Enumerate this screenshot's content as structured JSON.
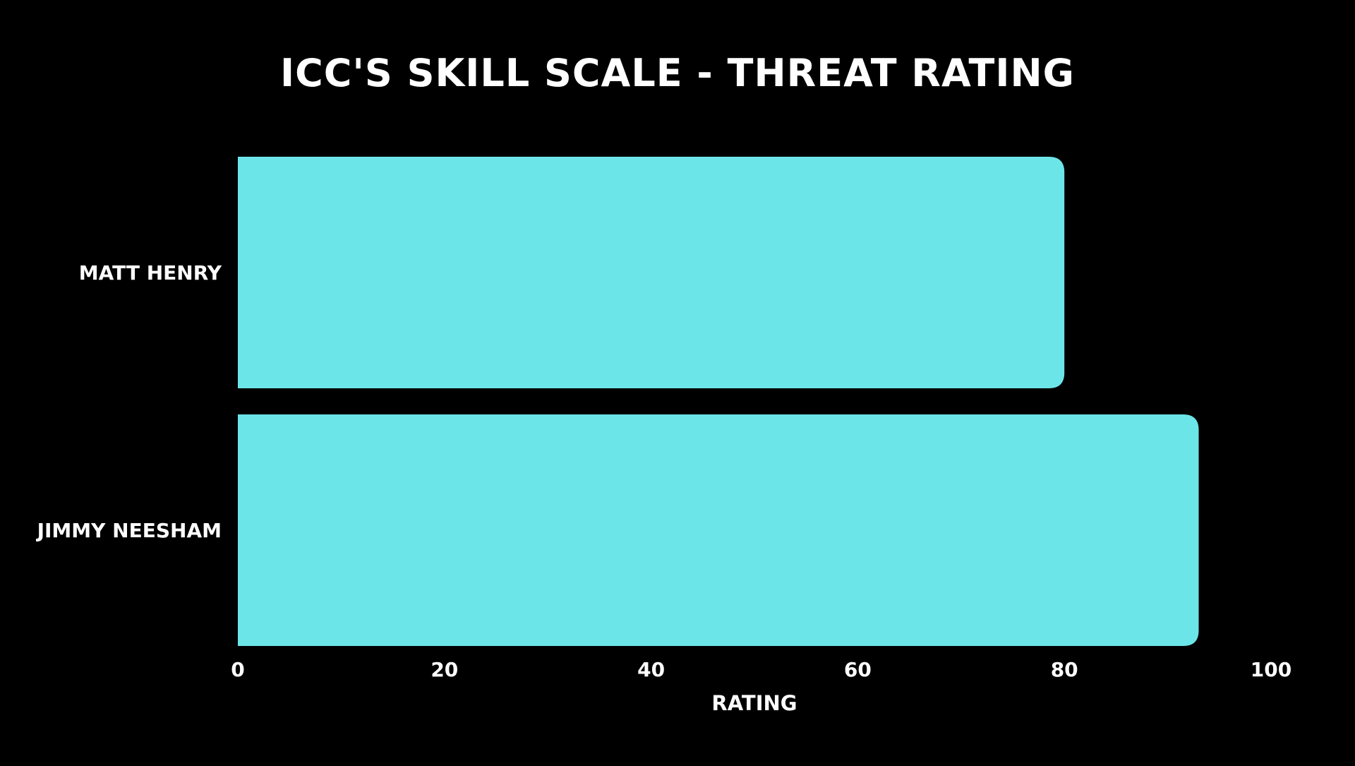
{
  "chart_data": {
    "type": "bar",
    "orientation": "horizontal",
    "title": "ICC'S SKILL SCALE - THREAT RATING",
    "xlabel": "RATING",
    "ylabel": "",
    "categories": [
      "MATT HENRY",
      "JIMMY NEESHAM"
    ],
    "values": [
      80,
      93
    ],
    "xlim": [
      0,
      100
    ],
    "xticks": [
      "0",
      "20",
      "40",
      "60",
      "80",
      "100"
    ],
    "grid": false,
    "legend": "none",
    "bar_color": "#6ce5e8",
    "background_color": "#000000",
    "text_color": "#ffffff"
  }
}
